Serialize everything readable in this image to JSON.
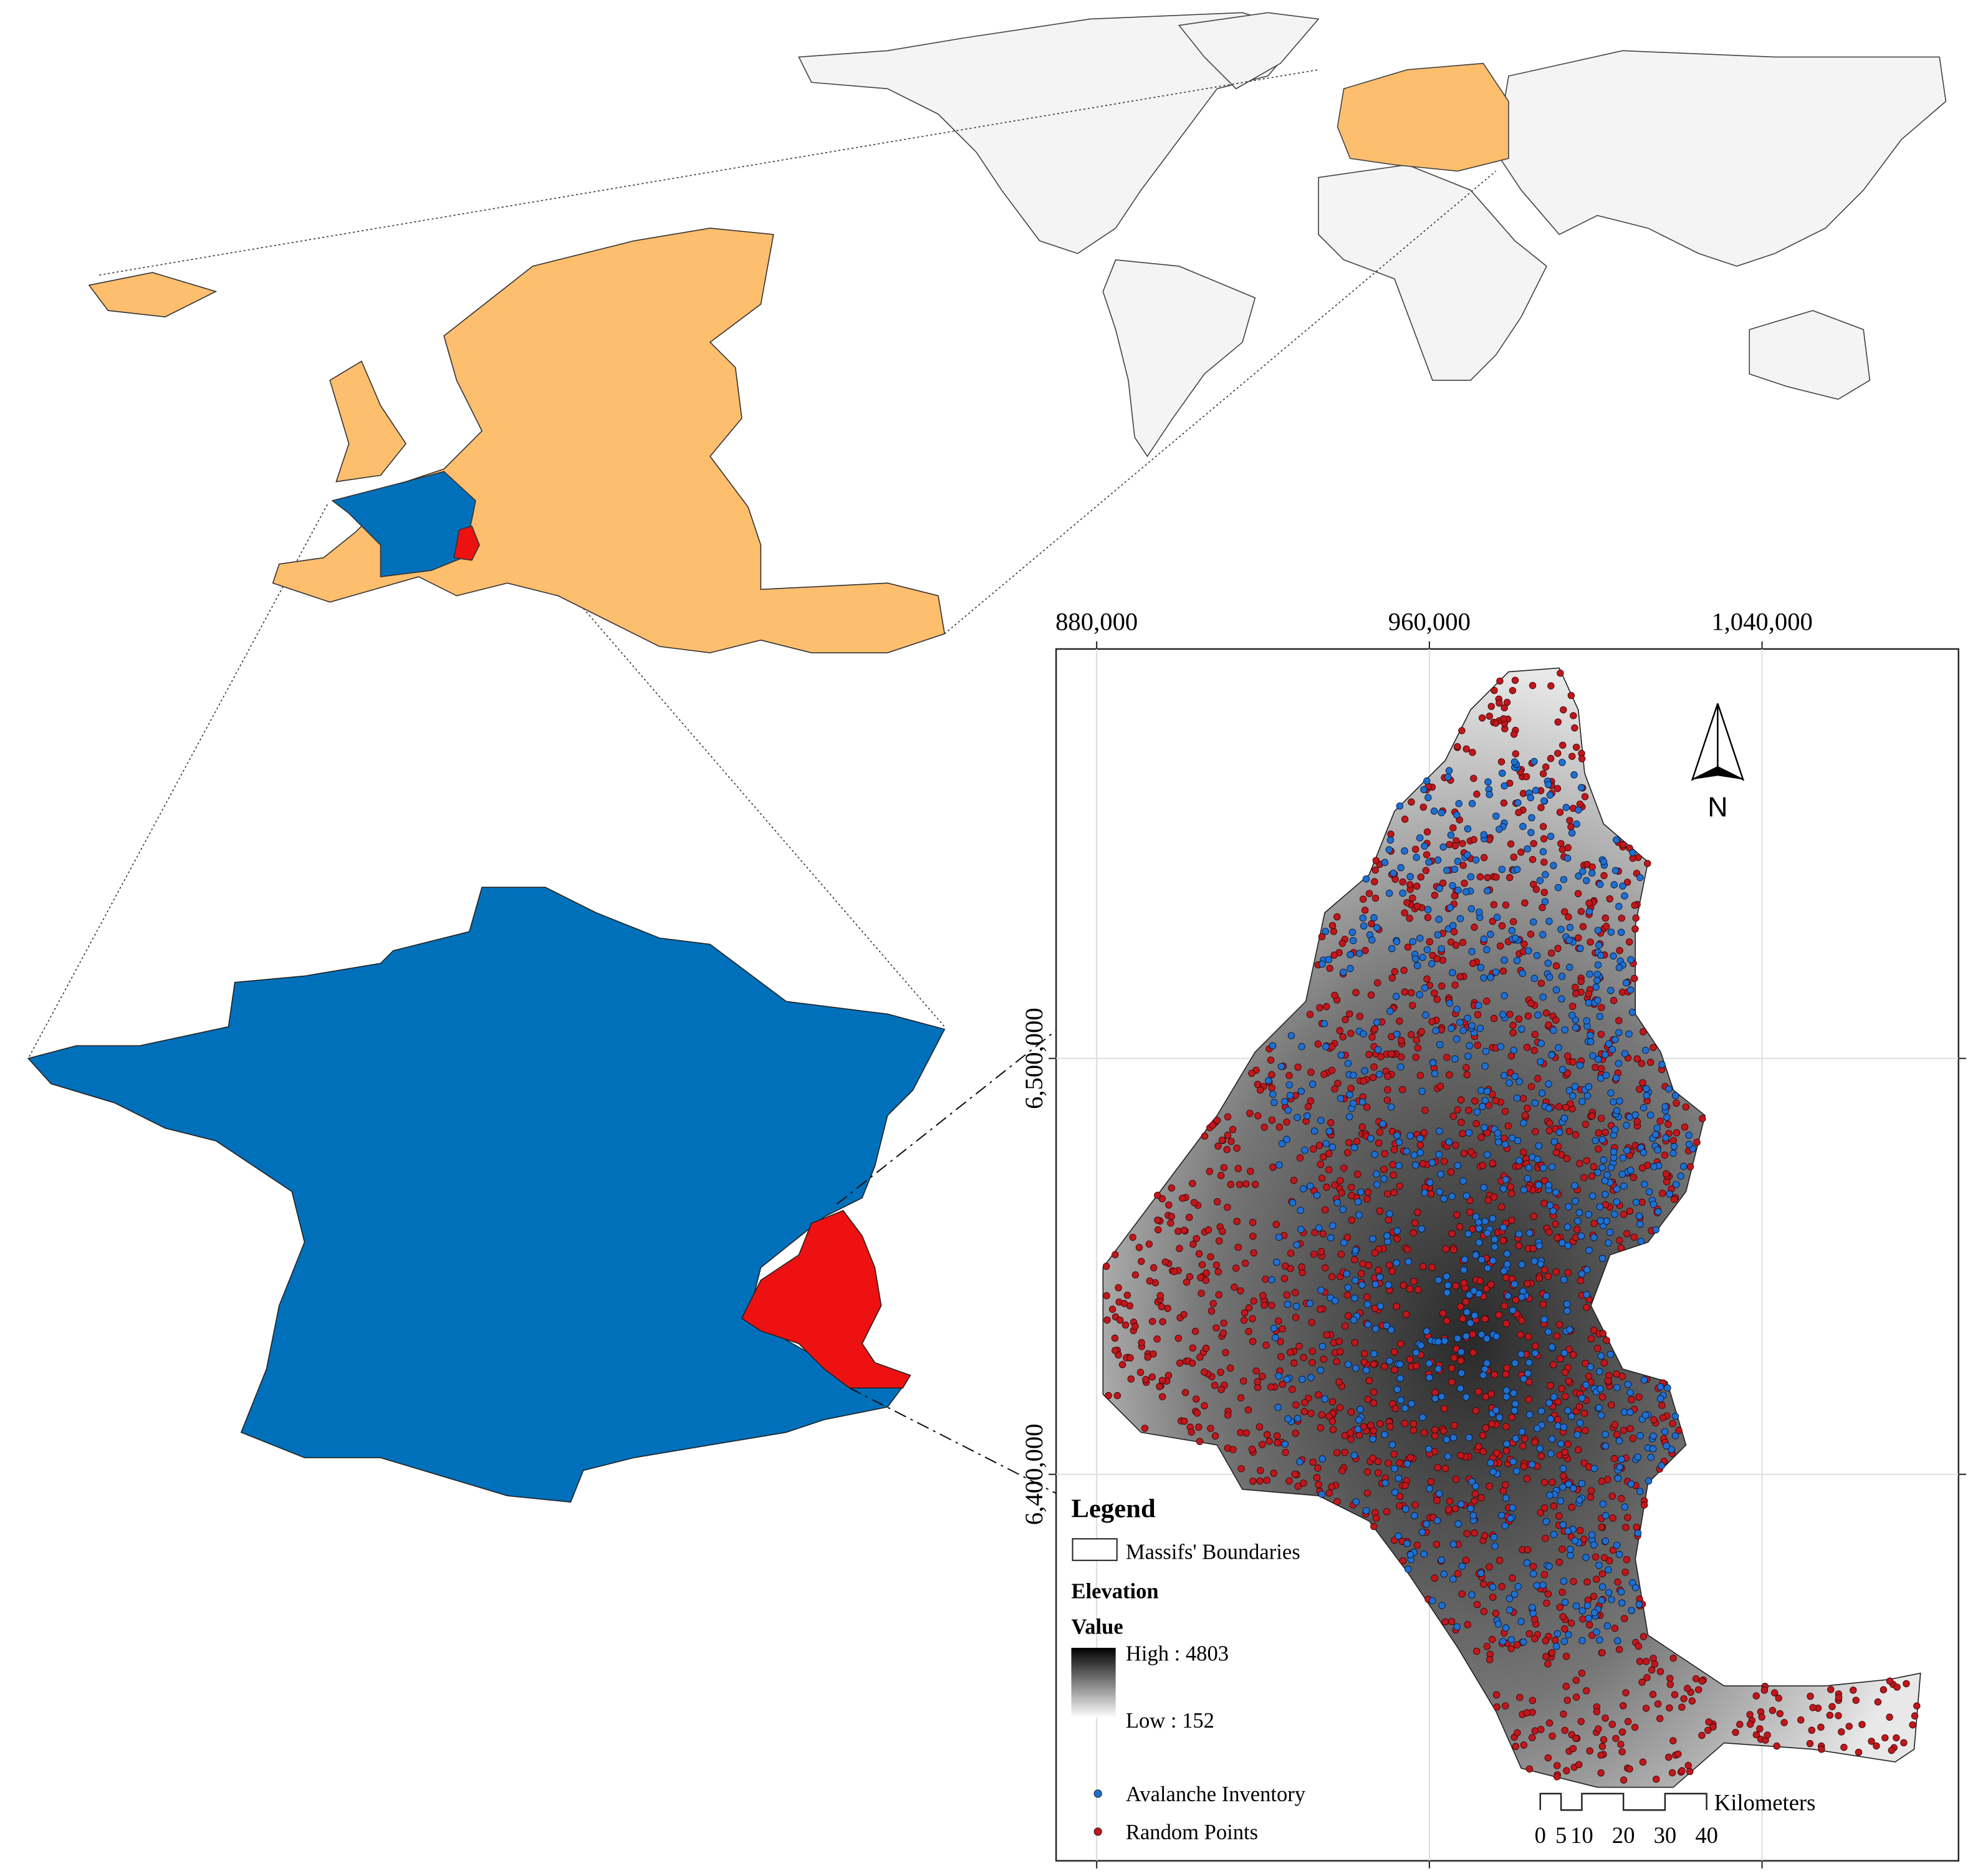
{
  "map": {
    "x_ticks": [
      {
        "value": 880000,
        "label": "880,000"
      },
      {
        "value": 960000,
        "label": "960,000"
      },
      {
        "value": 1040000,
        "label": "1,040,000"
      }
    ],
    "y_ticks": [
      {
        "value": 6500000,
        "label": "6,500,000"
      },
      {
        "value": 6400000,
        "label": "6,400,000"
      }
    ],
    "north": "N",
    "legend": {
      "title": "Legend",
      "boundary": "Massifs' Boundaries",
      "elevation_title": "Elevation",
      "value_title": "Value",
      "high": "High : 4803",
      "low": "Low : 152",
      "points": [
        {
          "name": "Avalanche Inventory",
          "color": "#1f6fd1"
        },
        {
          "name": "Random Points",
          "color": "#c0171c"
        }
      ]
    },
    "scale_bar": {
      "unit": "Kilometers",
      "ticks": [
        0,
        5,
        10,
        20,
        30,
        40
      ]
    }
  }
}
